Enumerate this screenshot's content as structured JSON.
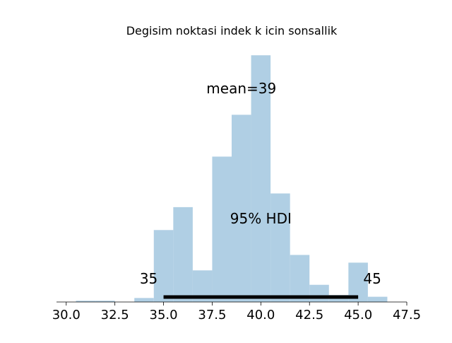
{
  "chart_data": {
    "type": "bar",
    "title": "Degisim noktasi indek k icin sonsallik",
    "xlabel": "",
    "ylabel": "",
    "xlim": [
      29.5,
      47.5
    ],
    "ylim": [
      0,
      1
    ],
    "bin_edges": [
      30.5,
      31.5,
      32.5,
      33.5,
      34.5,
      35.5,
      36.5,
      37.5,
      38.5,
      39.5,
      40.5,
      41.5,
      42.5,
      43.5,
      44.5,
      45.5,
      46.5
    ],
    "values": [
      0.005,
      0.005,
      0.0,
      0.016,
      0.289,
      0.381,
      0.127,
      0.584,
      0.752,
      0.991,
      0.436,
      0.189,
      0.069,
      0.028,
      0.158,
      0.021
    ],
    "bar_color": "#b0cfe4",
    "x_ticks": [
      "30.0",
      "32.5",
      "35.0",
      "37.5",
      "40.0",
      "42.5",
      "45.0",
      "47.5"
    ],
    "x_tick_values": [
      30.0,
      32.5,
      35.0,
      37.5,
      40.0,
      42.5,
      45.0,
      47.5
    ],
    "grid": false,
    "annotations": {
      "mean_label": "mean=39",
      "hdi_label": "95% HDI",
      "hdi_low_label": "35",
      "hdi_high_label": "45",
      "hdi_interval": [
        35.0,
        45.0
      ],
      "mean_value": 39.0
    }
  }
}
